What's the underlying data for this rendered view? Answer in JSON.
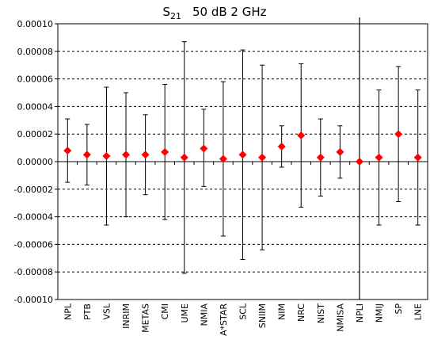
{
  "chart_data": {
    "type": "scatter",
    "title_main": "S",
    "title_sub": "21",
    "title_rest": "50 dB   2 GHz",
    "ylim": [
      -0.0001,
      0.0001
    ],
    "yticks": [
      -0.0001,
      -8e-05,
      -6e-05,
      -4e-05,
      -2e-05,
      0.0,
      2e-05,
      4e-05,
      6e-05,
      8e-05,
      0.0001
    ],
    "ytick_labels": [
      "-0.00010",
      "-0.00008",
      "-0.00006",
      "-0.00004",
      "-0.00002",
      "0.00000",
      "0.00002",
      "0.00004",
      "0.00006",
      "0.00008",
      "0.00010"
    ],
    "grid": "horizontal-dashed",
    "reference_line": "NPLI",
    "marker_color": "#ff0000",
    "categories": [
      "NPL",
      "PTB",
      "VSL",
      "INRIM",
      "METAS",
      "CMI",
      "UME",
      "NMIA",
      "A*STAR",
      "SCL",
      "SNIIM",
      "NIM",
      "NRC",
      "NIST",
      "NMISA",
      "NPLI",
      "NMIJ",
      "SP",
      "LNE"
    ],
    "values": [
      8e-06,
      5e-06,
      4e-06,
      5e-06,
      5e-06,
      7e-06,
      3e-06,
      9.5e-06,
      2e-06,
      5e-06,
      3e-06,
      1.1e-05,
      1.9e-05,
      3e-06,
      7e-06,
      0.0,
      3e-06,
      2e-05,
      3e-06
    ],
    "upper": [
      3.1e-05,
      2.7e-05,
      5.4e-05,
      5e-05,
      3.4e-05,
      5.6e-05,
      8.7e-05,
      3.8e-05,
      5.8e-05,
      8.1e-05,
      7e-05,
      2.6e-05,
      7.1e-05,
      3.1e-05,
      2.6e-05,
      null,
      5.2e-05,
      6.9e-05,
      5.2e-05
    ],
    "lower": [
      -1.5e-05,
      -1.7e-05,
      -4.6e-05,
      -4e-05,
      -2.4e-05,
      -4.2e-05,
      -8.1e-05,
      -1.8e-05,
      -5.4e-05,
      -7.1e-05,
      -6.4e-05,
      -4e-06,
      -3.3e-05,
      -2.5e-05,
      -1.2e-05,
      null,
      -4.6e-05,
      -2.9e-05,
      -4.6e-05
    ]
  }
}
